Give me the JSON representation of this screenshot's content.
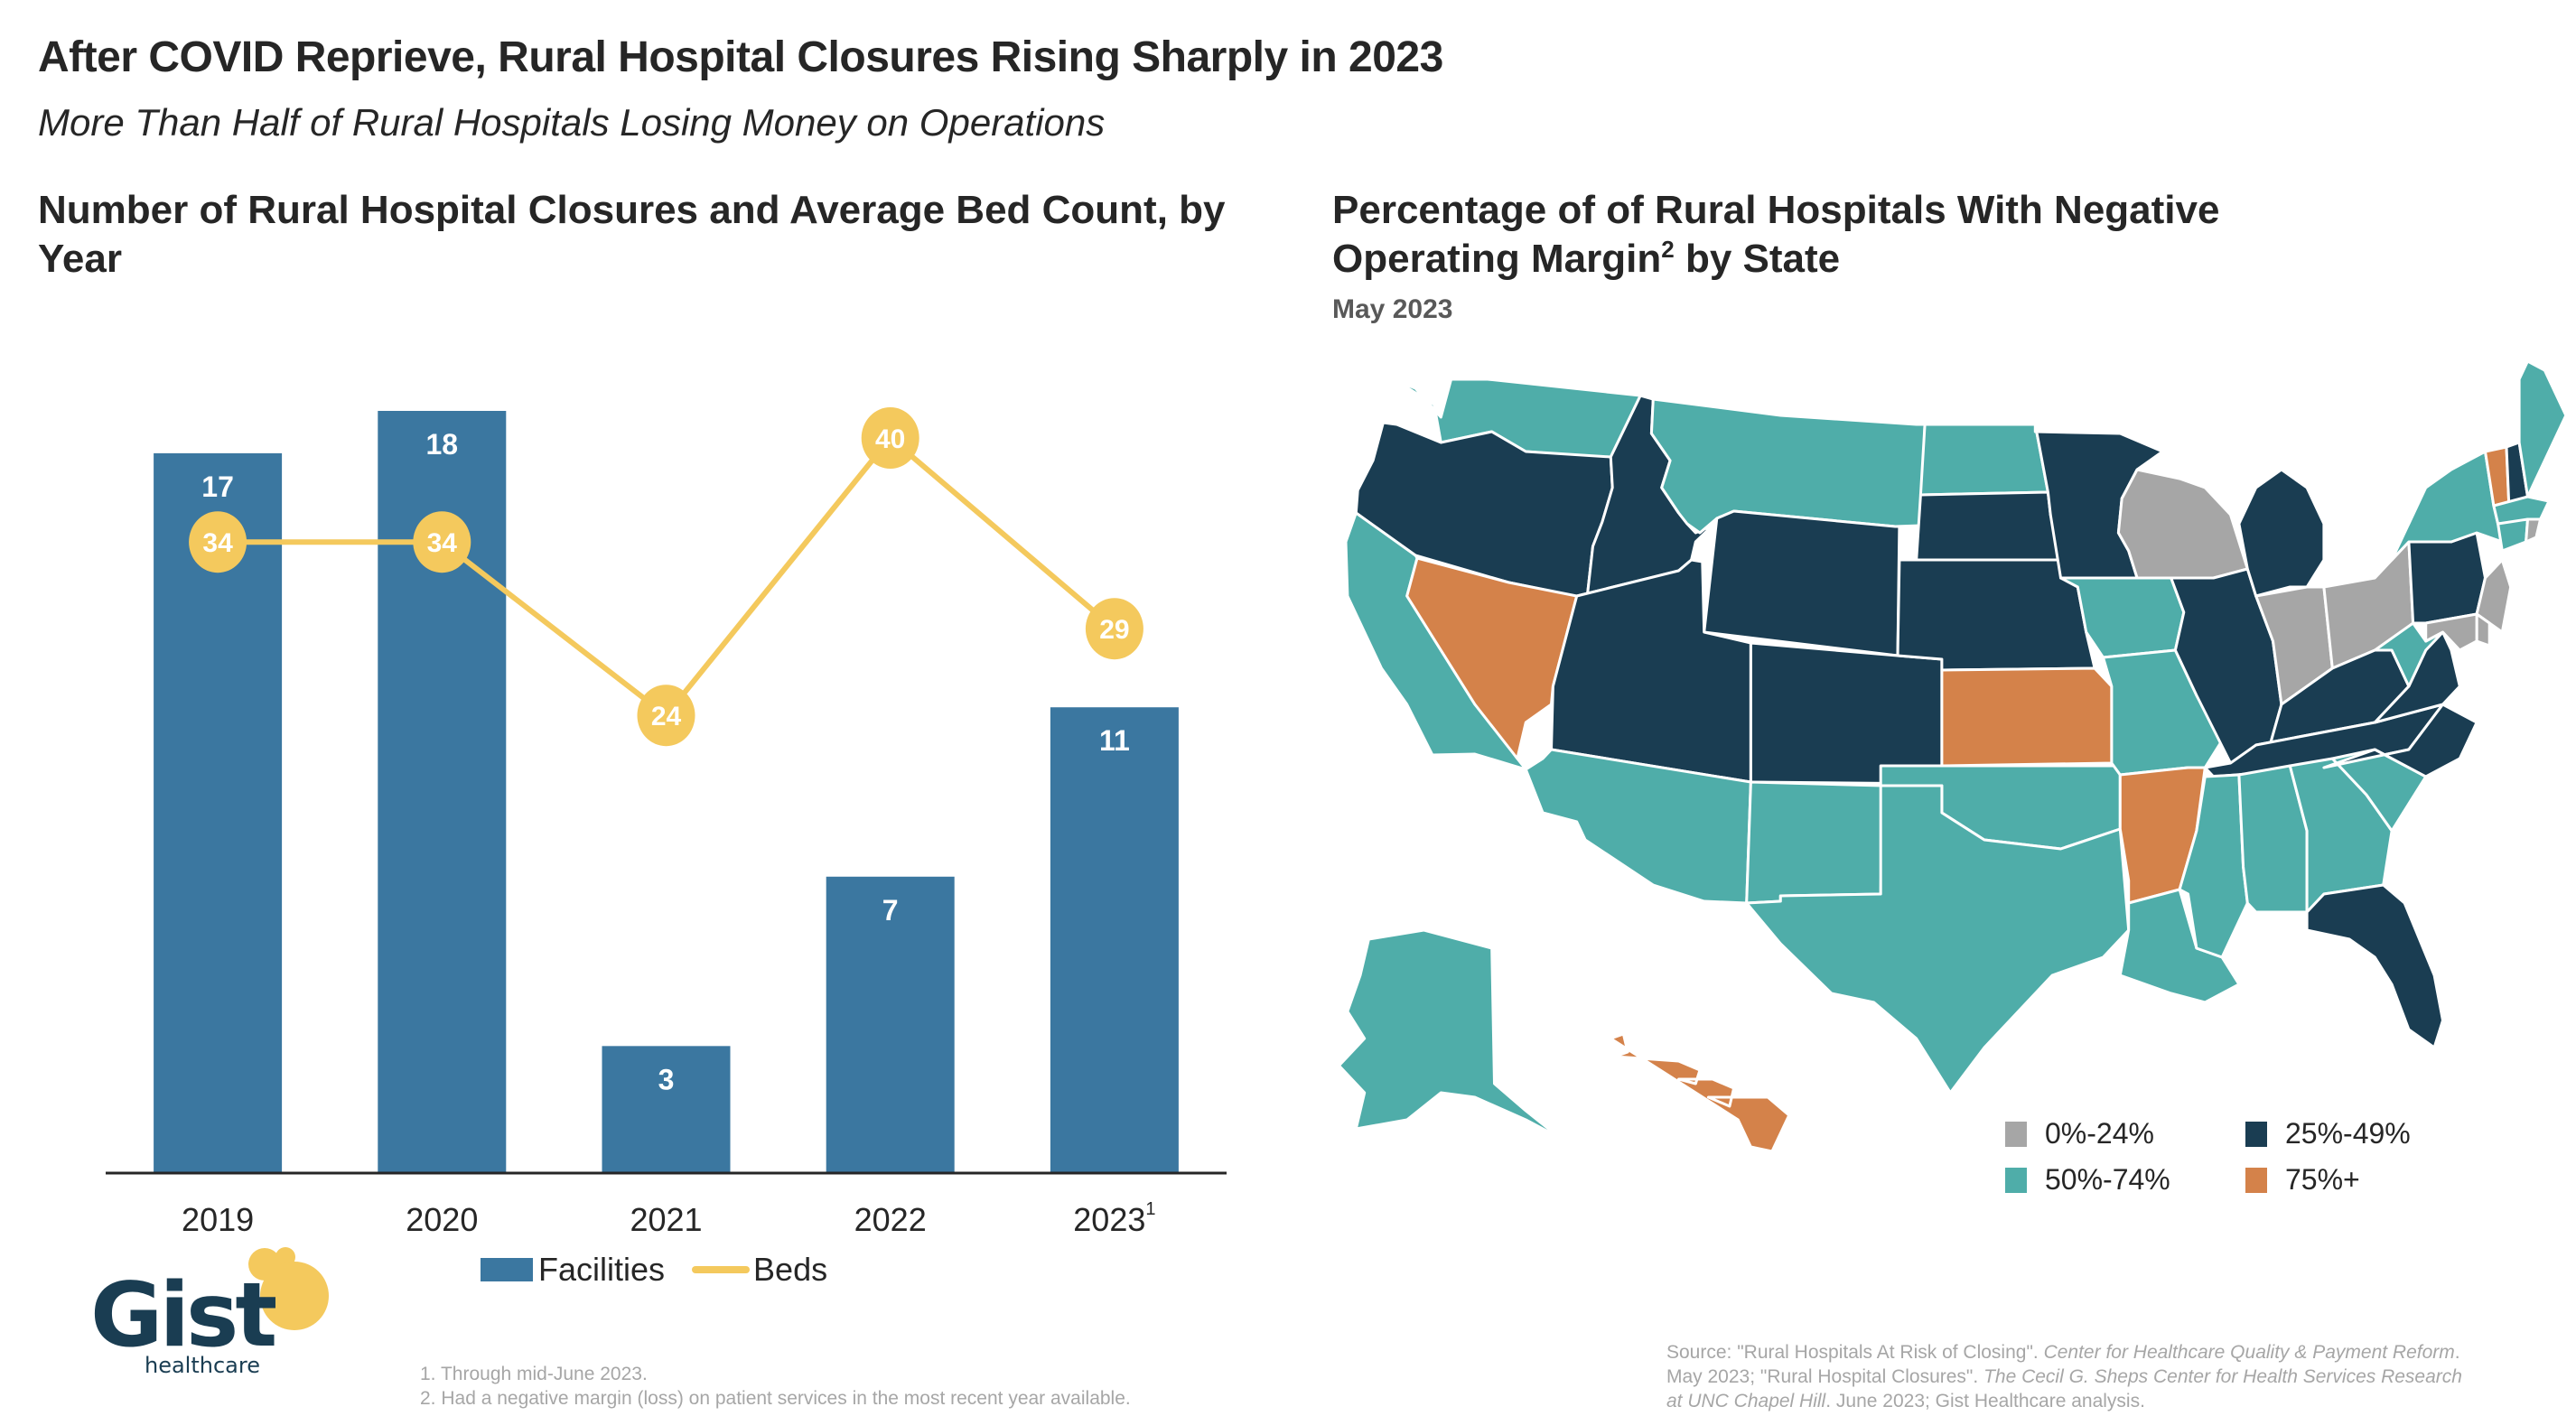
{
  "header": {
    "title": "After COVID Reprieve, Rural Hospital Closures Rising Sharply in 2023",
    "subtitle": "More Than Half of Rural Hospitals Losing Money on Operations"
  },
  "colors": {
    "bar": "#3b77a0",
    "line": "#f4c95d",
    "axis": "#262626",
    "map_gray": "#a6a6a6",
    "map_navy": "#1a3d52",
    "map_teal": "#4fada9",
    "map_orange": "#d4824a",
    "logo_navy": "#1a3d52",
    "logo_yellow": "#f4c95d"
  },
  "chart_data": [
    {
      "type": "bar+line",
      "title": "Number of Rural Hospital Closures and Average Bed Count, by Year",
      "categories": [
        "2019",
        "2020",
        "2021",
        "2022",
        "2023"
      ],
      "category_superscripts": [
        "",
        "",
        "",
        "",
        "1"
      ],
      "series": [
        {
          "name": "Facilities",
          "type": "bar",
          "values": [
            17,
            18,
            3,
            7,
            11
          ]
        },
        {
          "name": "Beds",
          "type": "line",
          "values": [
            34,
            34,
            24,
            40,
            29
          ]
        }
      ],
      "xlabel": "",
      "ylabel": "",
      "ylim_bars": [
        0,
        18
      ],
      "ylim_line": [
        0,
        40
      ],
      "grid": false,
      "legend": "bottom-center",
      "legend_entries": [
        "Facilities",
        "Beds"
      ]
    },
    {
      "type": "choropleth",
      "title": "Percentage of of Rural Hospitals With Negative Operating Margin² by State",
      "subtitle": "May 2023",
      "bins": [
        {
          "key": "gray",
          "label": "0%-24%"
        },
        {
          "key": "navy",
          "label": "25%-49%"
        },
        {
          "key": "teal",
          "label": "50%-74%"
        },
        {
          "key": "orange",
          "label": "75%+"
        }
      ],
      "states": {
        "WA": "teal",
        "OR": "navy",
        "CA": "teal",
        "NV": "orange",
        "ID": "navy",
        "MT": "teal",
        "WY": "navy",
        "UT": "navy",
        "AZ": "teal",
        "CO": "navy",
        "NM": "teal",
        "ND": "teal",
        "SD": "navy",
        "NE": "navy",
        "KS": "orange",
        "OK": "teal",
        "TX": "teal",
        "MN": "navy",
        "IA": "teal",
        "MO": "teal",
        "AR": "orange",
        "LA": "teal",
        "WI": "gray",
        "IL": "navy",
        "MI": "navy",
        "IN": "gray",
        "OH": "gray",
        "KY": "navy",
        "TN": "navy",
        "MS": "teal",
        "AL": "teal",
        "GA": "teal",
        "FL": "navy",
        "SC": "teal",
        "NC": "navy",
        "VA": "navy",
        "WV": "teal",
        "PA": "navy",
        "NY": "teal",
        "VT": "orange",
        "NH": "navy",
        "ME": "teal",
        "MA": "teal",
        "CT": "teal",
        "RI": "gray",
        "NJ": "gray",
        "DE": "gray",
        "MD": "gray",
        "AK": "teal",
        "HI": "orange"
      },
      "legend": "bottom-right"
    }
  ],
  "left_chart": {
    "title": "Number of Rural Hospital Closures and Average Bed Count, by Year",
    "legend_facilities": "Facilities",
    "legend_beds": "Beds"
  },
  "right_chart": {
    "title_part1": "Percentage of of Rural Hospitals With Negative Operating Margin",
    "title_sup": "2",
    "title_part2": " by State",
    "date": "May 2023",
    "legend": [
      "0%-24%",
      "25%-49%",
      "50%-74%",
      "75%+"
    ]
  },
  "footnotes": [
    "1.  Through mid-June 2023.",
    "2.  Had a negative margin (loss) on patient services in the most recent year available."
  ],
  "source": {
    "p1": "Source: \"Rural Hospitals At Risk of Closing\". ",
    "p2": "Center for Healthcare Quality & Payment Reform",
    "p3": ". May 2023; \"Rural Hospital Closures\". ",
    "p4": "The Cecil G. Sheps Center for Health Services Research at UNC Chapel Hill",
    "p5": ". June 2023; Gist Healthcare analysis."
  },
  "logo": {
    "name": "Gist",
    "tagline": "healthcare"
  }
}
